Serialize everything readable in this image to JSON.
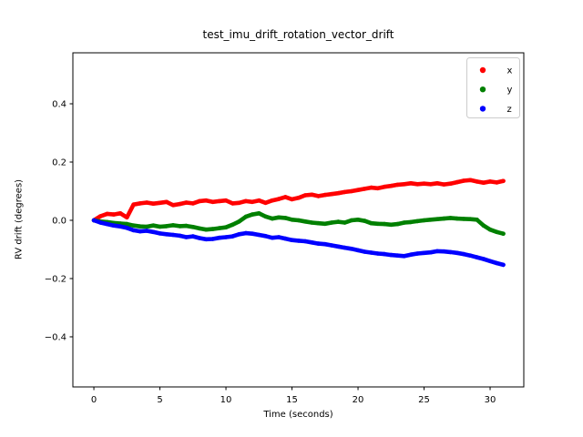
{
  "figure": {
    "background": "#ffffff",
    "spine_color": "#000000",
    "text_color": "#000000"
  },
  "chart_data": {
    "type": "scatter",
    "title": "test_imu_drift_rotation_vector_drift",
    "xlabel": "Time (seconds)",
    "ylabel": "RV drift (degrees)",
    "xlim": [
      -1.59,
      32.55
    ],
    "ylim": [
      -0.572,
      0.575
    ],
    "xticks": [
      0,
      5,
      10,
      15,
      20,
      25,
      30
    ],
    "xtick_labels": [
      "0",
      "5",
      "10",
      "15",
      "20",
      "25",
      "30"
    ],
    "yticks": [
      -0.4,
      -0.2,
      0.0,
      0.2,
      0.4
    ],
    "ytick_labels": [
      "−0.4",
      "−0.2",
      "0.0",
      "0.2",
      "0.4"
    ],
    "grid": false,
    "legend": {
      "position": "upper right",
      "border_color": "#cccccc",
      "background": "#ffffff",
      "entries": [
        {
          "label": "x",
          "color": "#ff0000"
        },
        {
          "label": "y",
          "color": "#008000"
        },
        {
          "label": "z",
          "color": "#0000ff"
        }
      ]
    },
    "x": [
      0,
      0.5,
      1,
      1.5,
      2,
      2.5,
      3,
      3.5,
      4,
      4.5,
      5,
      5.5,
      6,
      6.5,
      7,
      7.5,
      8,
      8.5,
      9,
      9.5,
      10,
      10.5,
      11,
      11.5,
      12,
      12.5,
      13,
      13.5,
      14,
      14.5,
      15,
      15.5,
      16,
      16.5,
      17,
      17.5,
      18,
      18.5,
      19,
      19.5,
      20,
      20.5,
      21,
      21.5,
      22,
      22.5,
      23,
      23.5,
      24,
      24.5,
      25,
      25.5,
      26,
      26.5,
      27,
      27.5,
      28,
      28.5,
      29,
      29.5,
      30,
      30.5,
      31
    ],
    "series": [
      {
        "name": "x",
        "color": "#ff0000",
        "values": [
          0.0,
          0.014,
          0.022,
          0.02,
          0.024,
          0.01,
          0.054,
          0.058,
          0.061,
          0.057,
          0.06,
          0.063,
          0.052,
          0.056,
          0.061,
          0.058,
          0.066,
          0.068,
          0.063,
          0.066,
          0.068,
          0.058,
          0.06,
          0.066,
          0.063,
          0.068,
          0.06,
          0.068,
          0.073,
          0.08,
          0.072,
          0.077,
          0.086,
          0.088,
          0.083,
          0.087,
          0.09,
          0.093,
          0.097,
          0.1,
          0.104,
          0.108,
          0.112,
          0.11,
          0.115,
          0.118,
          0.122,
          0.124,
          0.127,
          0.124,
          0.126,
          0.124,
          0.127,
          0.123,
          0.126,
          0.131,
          0.136,
          0.138,
          0.133,
          0.129,
          0.133,
          0.13,
          0.135
        ]
      },
      {
        "name": "y",
        "color": "#008000",
        "values": [
          0.0,
          -0.004,
          -0.006,
          -0.009,
          -0.011,
          -0.013,
          -0.018,
          -0.021,
          -0.022,
          -0.018,
          -0.022,
          -0.02,
          -0.017,
          -0.02,
          -0.019,
          -0.023,
          -0.028,
          -0.032,
          -0.03,
          -0.027,
          -0.024,
          -0.015,
          -0.004,
          0.012,
          0.02,
          0.024,
          0.013,
          0.006,
          0.01,
          0.008,
          0.002,
          0.0,
          -0.004,
          -0.008,
          -0.01,
          -0.012,
          -0.008,
          -0.005,
          -0.008,
          0.0,
          0.002,
          -0.002,
          -0.01,
          -0.012,
          -0.013,
          -0.015,
          -0.013,
          -0.008,
          -0.006,
          -0.003,
          0.0,
          0.002,
          0.004,
          0.006,
          0.008,
          0.006,
          0.005,
          0.004,
          0.002,
          -0.018,
          -0.032,
          -0.04,
          -0.046
        ]
      },
      {
        "name": "z",
        "color": "#0000ff",
        "values": [
          0.0,
          -0.008,
          -0.013,
          -0.018,
          -0.021,
          -0.026,
          -0.034,
          -0.038,
          -0.036,
          -0.04,
          -0.045,
          -0.048,
          -0.05,
          -0.053,
          -0.058,
          -0.055,
          -0.061,
          -0.065,
          -0.064,
          -0.06,
          -0.058,
          -0.055,
          -0.048,
          -0.044,
          -0.046,
          -0.05,
          -0.054,
          -0.06,
          -0.058,
          -0.063,
          -0.068,
          -0.07,
          -0.072,
          -0.076,
          -0.08,
          -0.082,
          -0.086,
          -0.09,
          -0.094,
          -0.098,
          -0.103,
          -0.108,
          -0.111,
          -0.114,
          -0.116,
          -0.119,
          -0.121,
          -0.123,
          -0.118,
          -0.114,
          -0.112,
          -0.11,
          -0.106,
          -0.107,
          -0.109,
          -0.112,
          -0.116,
          -0.121,
          -0.127,
          -0.133,
          -0.14,
          -0.147,
          -0.153
        ]
      }
    ]
  }
}
